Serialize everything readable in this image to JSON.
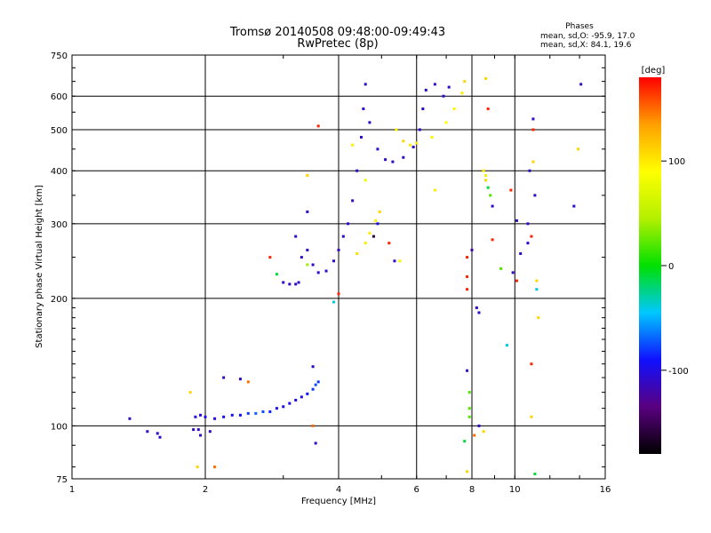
{
  "header": {
    "title_line1": "Tromsø 20140508 09:48:00-09:49:43",
    "title_line2": "RwPretec (8p)"
  },
  "stats": {
    "heading": "Phases",
    "line_o": "mean, sd,O: -95.9, 17.0",
    "line_x": "mean, sd,X:  84.1, 19.6"
  },
  "colorbar": {
    "label": "[deg]",
    "range": [
      -180,
      180
    ],
    "ticks": [
      {
        "value": 100,
        "label": "100"
      },
      {
        "value": 0,
        "label": "0"
      },
      {
        "value": -100,
        "label": "-100"
      }
    ],
    "colors": [
      "#000000",
      "#5a0080",
      "#1010ff",
      "#00c8ff",
      "#00e000",
      "#b4f000",
      "#ffff00",
      "#ffa000",
      "#ff0000"
    ]
  },
  "chart_data": {
    "type": "scatter",
    "title": "Tromsø 20140508 09:48:00-09:49:43",
    "subtitle": "RwPretec (8p)",
    "xlabel": "Frequency [MHz]",
    "ylabel": "Stationary phase Virtual Height [km]",
    "xscale": "log",
    "yscale": "log",
    "xlim": [
      1,
      16
    ],
    "ylim": [
      75,
      750
    ],
    "grid": true,
    "xticks": [
      {
        "value": 1,
        "label": "1"
      },
      {
        "value": 2,
        "label": "2"
      },
      {
        "value": 4,
        "label": "4"
      },
      {
        "value": 6,
        "label": "6"
      },
      {
        "value": 8,
        "label": "8"
      },
      {
        "value": 10,
        "label": "10"
      },
      {
        "value": 16,
        "label": "16"
      }
    ],
    "yticks": [
      {
        "value": 75,
        "label": "75"
      },
      {
        "value": 100,
        "label": "100"
      },
      {
        "value": 200,
        "label": "200"
      },
      {
        "value": 300,
        "label": "300"
      },
      {
        "value": 400,
        "label": "400"
      },
      {
        "value": 500,
        "label": "500"
      },
      {
        "value": 600,
        "label": "600"
      },
      {
        "value": 750,
        "label": "750"
      }
    ],
    "points": [
      {
        "x": 1.35,
        "y": 104,
        "phase": -110
      },
      {
        "x": 1.48,
        "y": 97,
        "phase": -110
      },
      {
        "x": 1.56,
        "y": 96,
        "phase": -110
      },
      {
        "x": 1.58,
        "y": 94,
        "phase": -110
      },
      {
        "x": 1.88,
        "y": 98,
        "phase": -110
      },
      {
        "x": 1.93,
        "y": 98,
        "phase": -110
      },
      {
        "x": 1.95,
        "y": 95,
        "phase": -110
      },
      {
        "x": 1.9,
        "y": 105,
        "phase": -105
      },
      {
        "x": 1.95,
        "y": 106,
        "phase": -105
      },
      {
        "x": 2.0,
        "y": 105,
        "phase": -100
      },
      {
        "x": 2.1,
        "y": 104,
        "phase": -100
      },
      {
        "x": 2.2,
        "y": 105,
        "phase": -95
      },
      {
        "x": 2.3,
        "y": 106,
        "phase": -95
      },
      {
        "x": 2.4,
        "y": 106,
        "phase": -90
      },
      {
        "x": 2.5,
        "y": 107,
        "phase": -80
      },
      {
        "x": 2.6,
        "y": 107,
        "phase": -70
      },
      {
        "x": 2.7,
        "y": 108,
        "phase": -75
      },
      {
        "x": 2.8,
        "y": 108,
        "phase": -85
      },
      {
        "x": 2.9,
        "y": 110,
        "phase": -95
      },
      {
        "x": 3.0,
        "y": 111,
        "phase": -100
      },
      {
        "x": 3.1,
        "y": 113,
        "phase": -100
      },
      {
        "x": 3.2,
        "y": 115,
        "phase": -100
      },
      {
        "x": 3.3,
        "y": 117,
        "phase": -95
      },
      {
        "x": 3.4,
        "y": 119,
        "phase": -90
      },
      {
        "x": 3.5,
        "y": 122,
        "phase": -80
      },
      {
        "x": 3.55,
        "y": 125,
        "phase": -75
      },
      {
        "x": 3.6,
        "y": 127,
        "phase": -80
      },
      {
        "x": 3.5,
        "y": 138,
        "phase": -110
      },
      {
        "x": 2.2,
        "y": 130,
        "phase": -110
      },
      {
        "x": 2.4,
        "y": 129,
        "phase": -110
      },
      {
        "x": 2.5,
        "y": 127,
        "phase": 150
      },
      {
        "x": 1.85,
        "y": 120,
        "phase": 110
      },
      {
        "x": 3.5,
        "y": 100,
        "phase": 150
      },
      {
        "x": 3.55,
        "y": 91,
        "phase": -110
      },
      {
        "x": 2.9,
        "y": 228,
        "phase": -10
      },
      {
        "x": 3.0,
        "y": 218,
        "phase": -110
      },
      {
        "x": 3.1,
        "y": 216,
        "phase": -110
      },
      {
        "x": 3.2,
        "y": 216,
        "phase": -110
      },
      {
        "x": 3.25,
        "y": 218,
        "phase": -110
      },
      {
        "x": 3.2,
        "y": 280,
        "phase": -110
      },
      {
        "x": 3.3,
        "y": 250,
        "phase": -110
      },
      {
        "x": 3.4,
        "y": 320,
        "phase": -110
      },
      {
        "x": 3.4,
        "y": 260,
        "phase": -110
      },
      {
        "x": 3.5,
        "y": 240,
        "phase": -110
      },
      {
        "x": 3.6,
        "y": 230,
        "phase": -110
      },
      {
        "x": 3.75,
        "y": 232,
        "phase": -110
      },
      {
        "x": 3.9,
        "y": 245,
        "phase": -110
      },
      {
        "x": 4.0,
        "y": 260,
        "phase": -110
      },
      {
        "x": 4.1,
        "y": 280,
        "phase": -110
      },
      {
        "x": 4.2,
        "y": 300,
        "phase": -110
      },
      {
        "x": 4.3,
        "y": 340,
        "phase": -110
      },
      {
        "x": 4.4,
        "y": 400,
        "phase": -110
      },
      {
        "x": 4.5,
        "y": 480,
        "phase": -110
      },
      {
        "x": 4.55,
        "y": 560,
        "phase": -110
      },
      {
        "x": 4.6,
        "y": 640,
        "phase": -110
      },
      {
        "x": 4.7,
        "y": 520,
        "phase": -110
      },
      {
        "x": 4.9,
        "y": 450,
        "phase": -110
      },
      {
        "x": 5.1,
        "y": 425,
        "phase": -110
      },
      {
        "x": 5.3,
        "y": 420,
        "phase": -110
      },
      {
        "x": 5.6,
        "y": 430,
        "phase": -110
      },
      {
        "x": 5.9,
        "y": 455,
        "phase": -110
      },
      {
        "x": 6.1,
        "y": 500,
        "phase": -110
      },
      {
        "x": 6.2,
        "y": 560,
        "phase": -110
      },
      {
        "x": 6.3,
        "y": 620,
        "phase": -110
      },
      {
        "x": 6.6,
        "y": 640,
        "phase": -110
      },
      {
        "x": 6.9,
        "y": 600,
        "phase": -110
      },
      {
        "x": 7.1,
        "y": 630,
        "phase": -110
      },
      {
        "x": 5.4,
        "y": 500,
        "phase": 95
      },
      {
        "x": 5.6,
        "y": 470,
        "phase": 110
      },
      {
        "x": 5.8,
        "y": 460,
        "phase": 100
      },
      {
        "x": 6.0,
        "y": 465,
        "phase": 100
      },
      {
        "x": 6.5,
        "y": 480,
        "phase": 95
      },
      {
        "x": 7.0,
        "y": 520,
        "phase": 90
      },
      {
        "x": 7.3,
        "y": 560,
        "phase": 95
      },
      {
        "x": 7.6,
        "y": 610,
        "phase": 100
      },
      {
        "x": 7.7,
        "y": 650,
        "phase": 110
      },
      {
        "x": 4.4,
        "y": 255,
        "phase": 105
      },
      {
        "x": 4.6,
        "y": 270,
        "phase": 100
      },
      {
        "x": 4.7,
        "y": 285,
        "phase": 100
      },
      {
        "x": 4.85,
        "y": 305,
        "phase": 100
      },
      {
        "x": 4.95,
        "y": 320,
        "phase": 110
      },
      {
        "x": 3.6,
        "y": 510,
        "phase": 170
      },
      {
        "x": 4.3,
        "y": 460,
        "phase": 100
      },
      {
        "x": 4.6,
        "y": 380,
        "phase": 80
      },
      {
        "x": 4.8,
        "y": 280,
        "phase": -160
      },
      {
        "x": 5.2,
        "y": 270,
        "phase": 170
      },
      {
        "x": 5.35,
        "y": 245,
        "phase": -110
      },
      {
        "x": 5.5,
        "y": 245,
        "phase": 80
      },
      {
        "x": 4.9,
        "y": 300,
        "phase": -100
      },
      {
        "x": 6.6,
        "y": 360,
        "phase": 100
      },
      {
        "x": 7.8,
        "y": 250,
        "phase": 170
      },
      {
        "x": 7.8,
        "y": 225,
        "phase": 170
      },
      {
        "x": 7.8,
        "y": 210,
        "phase": 170
      },
      {
        "x": 8.0,
        "y": 260,
        "phase": -120
      },
      {
        "x": 8.2,
        "y": 190,
        "phase": -110
      },
      {
        "x": 8.3,
        "y": 185,
        "phase": -110
      },
      {
        "x": 7.8,
        "y": 135,
        "phase": -110
      },
      {
        "x": 7.9,
        "y": 120,
        "phase": 20
      },
      {
        "x": 7.9,
        "y": 110,
        "phase": 20
      },
      {
        "x": 7.9,
        "y": 105,
        "phase": 20
      },
      {
        "x": 7.7,
        "y": 92,
        "phase": -10
      },
      {
        "x": 7.8,
        "y": 78,
        "phase": 110
      },
      {
        "x": 8.1,
        "y": 95,
        "phase": 150
      },
      {
        "x": 8.3,
        "y": 100,
        "phase": -110
      },
      {
        "x": 8.5,
        "y": 97,
        "phase": 110
      },
      {
        "x": 8.5,
        "y": 400,
        "phase": 100
      },
      {
        "x": 8.6,
        "y": 390,
        "phase": 100
      },
      {
        "x": 8.6,
        "y": 380,
        "phase": 110
      },
      {
        "x": 8.7,
        "y": 365,
        "phase": -10
      },
      {
        "x": 8.8,
        "y": 350,
        "phase": 20
      },
      {
        "x": 8.9,
        "y": 330,
        "phase": -110
      },
      {
        "x": 8.6,
        "y": 660,
        "phase": 110
      },
      {
        "x": 8.7,
        "y": 560,
        "phase": 170
      },
      {
        "x": 8.9,
        "y": 275,
        "phase": 170
      },
      {
        "x": 9.3,
        "y": 235,
        "phase": 20
      },
      {
        "x": 9.6,
        "y": 155,
        "phase": -40
      },
      {
        "x": 9.8,
        "y": 360,
        "phase": 170
      },
      {
        "x": 9.9,
        "y": 230,
        "phase": -110
      },
      {
        "x": 10.1,
        "y": 220,
        "phase": 170
      },
      {
        "x": 10.1,
        "y": 305,
        "phase": -110
      },
      {
        "x": 10.3,
        "y": 255,
        "phase": -110
      },
      {
        "x": 10.7,
        "y": 300,
        "phase": -110
      },
      {
        "x": 10.7,
        "y": 270,
        "phase": -110
      },
      {
        "x": 10.8,
        "y": 400,
        "phase": -110
      },
      {
        "x": 10.9,
        "y": 280,
        "phase": 170
      },
      {
        "x": 10.9,
        "y": 140,
        "phase": 170
      },
      {
        "x": 10.9,
        "y": 105,
        "phase": 110
      },
      {
        "x": 11.0,
        "y": 530,
        "phase": -110
      },
      {
        "x": 11.0,
        "y": 500,
        "phase": 170
      },
      {
        "x": 11.1,
        "y": 350,
        "phase": -110
      },
      {
        "x": 11.2,
        "y": 210,
        "phase": -40
      },
      {
        "x": 11.2,
        "y": 220,
        "phase": 110
      },
      {
        "x": 11.3,
        "y": 180,
        "phase": 110
      },
      {
        "x": 11.1,
        "y": 77,
        "phase": -10
      },
      {
        "x": 11.0,
        "y": 420,
        "phase": 110
      },
      {
        "x": 13.6,
        "y": 330,
        "phase": -110
      },
      {
        "x": 13.9,
        "y": 450,
        "phase": 110
      },
      {
        "x": 14.1,
        "y": 640,
        "phase": -110
      },
      {
        "x": 3.4,
        "y": 390,
        "phase": 110
      },
      {
        "x": 2.8,
        "y": 250,
        "phase": 170
      },
      {
        "x": 3.4,
        "y": 240,
        "phase": 40
      },
      {
        "x": 4.0,
        "y": 205,
        "phase": 170
      },
      {
        "x": 3.9,
        "y": 196,
        "phase": -40
      },
      {
        "x": 2.1,
        "y": 80,
        "phase": 150
      },
      {
        "x": 1.92,
        "y": 80,
        "phase": 110
      },
      {
        "x": 2.05,
        "y": 97,
        "phase": -110
      }
    ]
  }
}
